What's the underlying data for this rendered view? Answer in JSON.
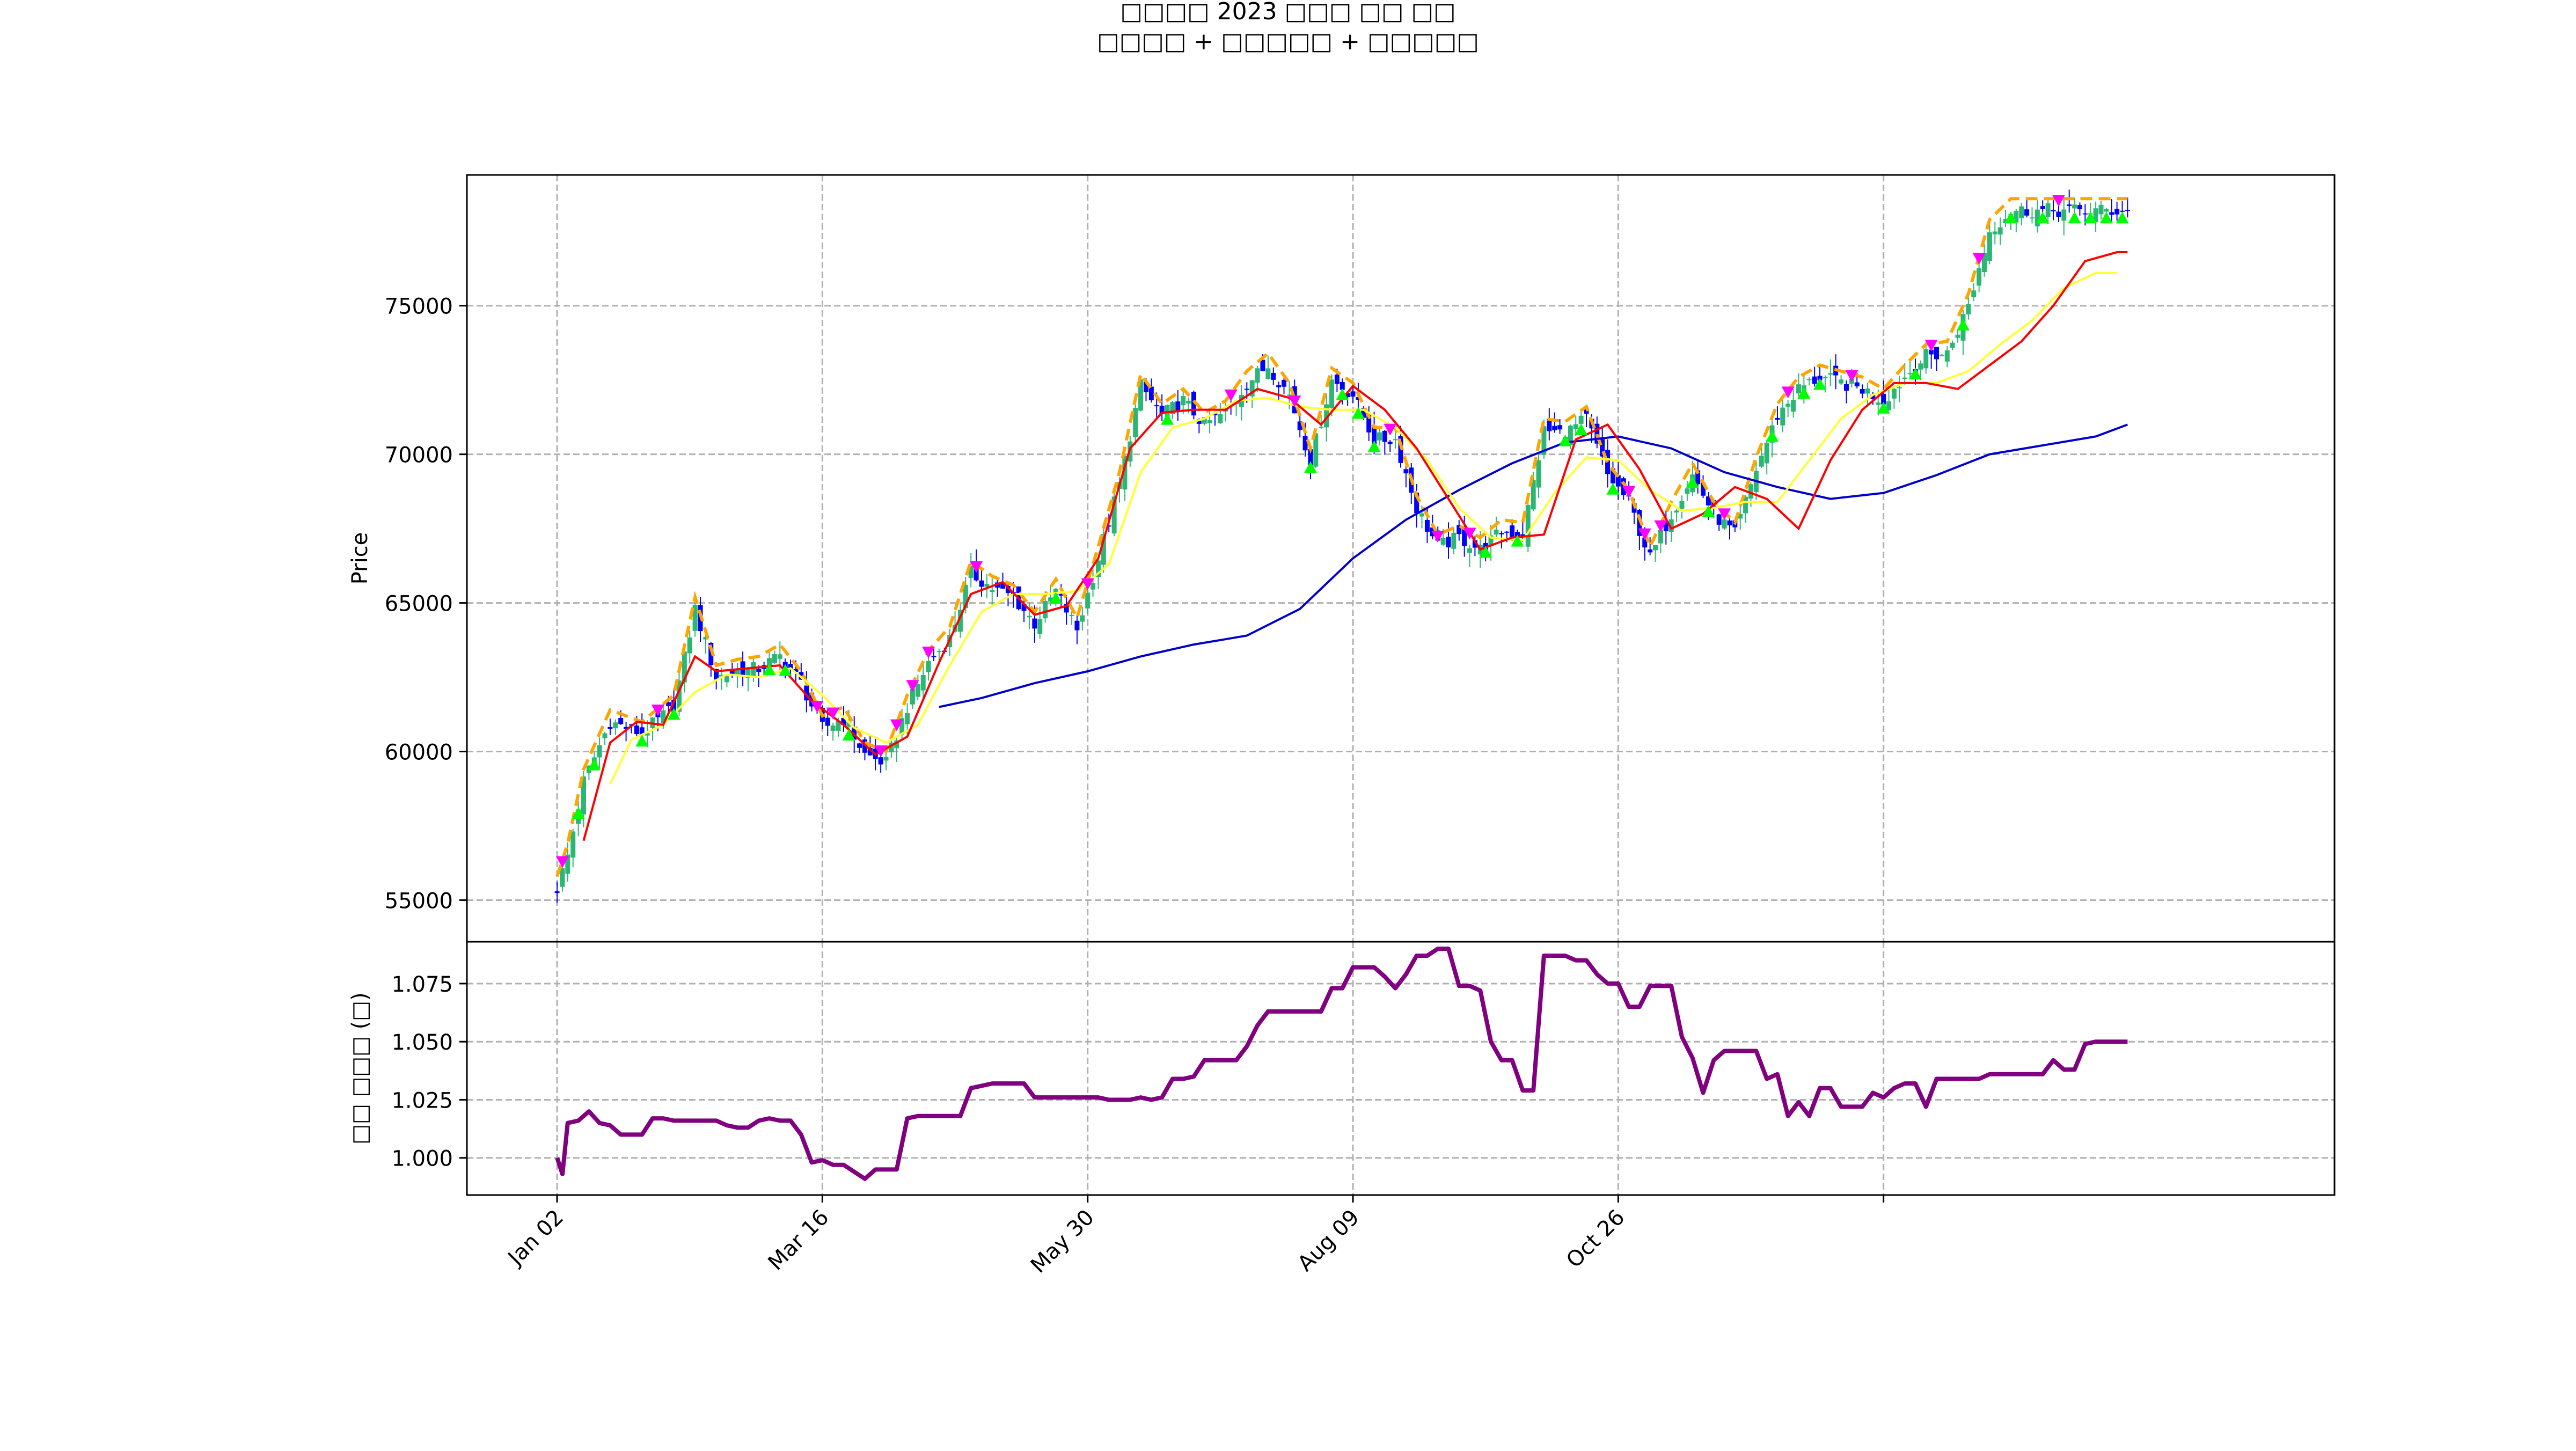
{
  "figure": {
    "title_line1": "□□□□ 2023 □□□ □□ □□",
    "title_line2": "□□□□ + □□□□□ + □□□□□"
  },
  "colors": {
    "up_candle": "#2bb673",
    "down_candle": "#0000ff",
    "ma_fast": "#ff0000",
    "ma_mid": "#ffff33",
    "ma_slow": "#0000cd",
    "band_dashed": "#ffa500",
    "buy_marker": "#00ff00",
    "sell_marker": "#ff00ff",
    "ratio_line": "#800080",
    "grid": "#b0b0b0"
  },
  "chart_data": [
    {
      "type": "line",
      "panel": "price",
      "subtype": "candlestick-with-overlays",
      "ylabel": "Price",
      "ylim": [
        53600,
        79400
      ],
      "yticks": [
        55000,
        60000,
        65000,
        70000,
        75000
      ],
      "x_tick_labels": [
        "Jan 02",
        "Mar 16",
        "May 30",
        "Aug 09",
        "Oct 26",
        ""
      ],
      "grid": true,
      "series": [
        {
          "role": "price-close",
          "x": [
            0,
            2,
            5,
            10,
            16,
            22,
            26,
            30,
            34,
            38,
            42,
            46,
            50,
            54,
            58,
            62,
            66,
            70,
            74,
            78,
            82,
            86,
            90,
            94,
            98,
            102,
            106,
            110,
            114,
            118,
            122,
            126,
            130,
            134,
            138,
            142,
            146,
            150,
            154,
            158,
            162,
            166,
            170,
            174,
            178,
            182,
            186,
            190,
            194,
            198,
            202,
            206,
            210,
            214,
            218,
            222,
            226,
            230,
            234,
            238,
            242,
            246,
            250,
            254,
            258,
            262,
            266,
            270,
            274,
            278,
            282,
            286,
            290,
            294,
            296
          ],
          "values": [
            55400,
            56500,
            59000,
            61000,
            60600,
            61500,
            64800,
            62500,
            62700,
            62800,
            63200,
            62300,
            60800,
            61100,
            59900,
            59600,
            61500,
            63000,
            63800,
            66000,
            65500,
            65200,
            64300,
            65400,
            64100,
            66500,
            69000,
            72300,
            71300,
            71800,
            71000,
            71400,
            72400,
            73000,
            72000,
            69800,
            72500,
            72000,
            70500,
            70500,
            68200,
            66900,
            67200,
            66800,
            67400,
            67300,
            70800,
            70700,
            71200,
            69300,
            68400,
            66500,
            68000,
            69300,
            68000,
            67300,
            69500,
            71300,
            72200,
            72600,
            72400,
            72200,
            71800,
            72600,
            73300,
            73400,
            75000,
            77500,
            78200,
            78200,
            78200,
            78200,
            78200,
            78200,
            78200
          ]
        },
        {
          "role": "ma-fast",
          "x": [
            5,
            10,
            15,
            20,
            26,
            30,
            36,
            42,
            48,
            54,
            60,
            66,
            72,
            78,
            84,
            90,
            96,
            102,
            108,
            114,
            120,
            126,
            132,
            138,
            144,
            150,
            156,
            162,
            168,
            174,
            180,
            186,
            192,
            198,
            204,
            210,
            216,
            222,
            228,
            234,
            240,
            246,
            252,
            258,
            264,
            270,
            276,
            282,
            288,
            294,
            296
          ],
          "values": [
            57000,
            60300,
            61000,
            60900,
            63200,
            62700,
            62800,
            62900,
            61700,
            60900,
            59900,
            60500,
            63000,
            65300,
            65700,
            64600,
            64900,
            66500,
            70200,
            71400,
            71500,
            71500,
            72200,
            71900,
            71000,
            72300,
            71500,
            70200,
            68500,
            66800,
            67200,
            67300,
            70500,
            71000,
            69500,
            67500,
            68000,
            68900,
            68500,
            67500,
            69800,
            71500,
            72400,
            72400,
            72200,
            73000,
            73800,
            75000,
            76500,
            76800,
            76800
          ]
        },
        {
          "role": "ma-mid",
          "x": [
            10,
            14,
            20,
            26,
            32,
            38,
            44,
            50,
            56,
            62,
            68,
            74,
            80,
            86,
            92,
            98,
            104,
            110,
            116,
            122,
            128,
            134,
            140,
            146,
            152,
            158,
            164,
            170,
            176,
            182,
            188,
            194,
            200,
            206,
            212,
            218,
            224,
            230,
            236,
            242,
            248,
            254,
            260,
            266,
            272,
            278,
            284,
            290,
            294
          ],
          "values": [
            58900,
            60400,
            60900,
            62000,
            62600,
            62500,
            62800,
            61900,
            60800,
            60300,
            60900,
            62900,
            64700,
            65300,
            65300,
            65400,
            66300,
            69400,
            70900,
            71200,
            71800,
            71900,
            71600,
            71500,
            71500,
            70900,
            69800,
            68200,
            67200,
            67100,
            68700,
            69900,
            69800,
            68800,
            68100,
            68200,
            68400,
            68400,
            69800,
            71200,
            72000,
            72400,
            72400,
            72800,
            73700,
            74500,
            75600,
            76100,
            76100
          ]
        },
        {
          "role": "ma-slow",
          "x": [
            72,
            80,
            90,
            100,
            110,
            120,
            130,
            140,
            150,
            160,
            170,
            180,
            190,
            200,
            210,
            220,
            230,
            240,
            250,
            260,
            270,
            280,
            290,
            296
          ],
          "values": [
            61500,
            61800,
            62300,
            62700,
            63200,
            63600,
            63900,
            64800,
            66500,
            67800,
            68800,
            69700,
            70400,
            70600,
            70200,
            69400,
            68900,
            68500,
            68700,
            69300,
            70000,
            70300,
            70600,
            71000
          ]
        }
      ]
    },
    {
      "type": "line",
      "panel": "ratio",
      "ylabel": "□□ □□□ (□)",
      "ylim": [
        0.984,
        1.093
      ],
      "yticks": [
        1.0,
        1.025,
        1.05,
        1.075
      ],
      "yticks_text": [
        "1.000",
        "1.025",
        "1.050",
        "1.075"
      ],
      "grid": true,
      "series": [
        {
          "role": "ratio",
          "x": [
            0,
            1,
            2,
            4,
            6,
            8,
            10,
            12,
            14,
            16,
            18,
            20,
            22,
            24,
            26,
            28,
            30,
            32,
            34,
            36,
            38,
            40,
            42,
            44,
            46,
            48,
            50,
            52,
            54,
            56,
            58,
            60,
            62,
            64,
            66,
            68,
            70,
            72,
            74,
            76,
            78,
            80,
            82,
            84,
            86,
            88,
            90,
            92,
            94,
            96,
            98,
            100,
            102,
            104,
            106,
            108,
            110,
            112,
            114,
            116,
            118,
            120,
            122,
            124,
            126,
            128,
            130,
            132,
            134,
            136,
            138,
            140,
            142,
            144,
            146,
            148,
            150,
            152,
            154,
            156,
            158,
            160,
            162,
            164,
            166,
            168,
            170,
            172,
            174,
            176,
            178,
            180,
            182,
            184,
            186,
            188,
            190,
            192,
            194,
            196,
            198,
            200,
            202,
            204,
            206,
            208,
            210,
            212,
            214,
            216,
            218,
            220,
            222,
            224,
            226,
            228,
            230,
            232,
            234,
            236,
            238,
            240,
            242,
            244,
            246,
            248,
            250,
            252,
            254,
            256,
            258,
            260,
            262,
            264,
            266,
            268,
            270,
            272,
            274,
            276,
            278,
            280,
            282,
            284,
            286,
            288,
            290,
            292,
            294,
            296
          ],
          "values": [
            1.0,
            0.993,
            1.015,
            1.016,
            1.02,
            1.015,
            1.014,
            1.01,
            1.01,
            1.01,
            1.017,
            1.017,
            1.016,
            1.016,
            1.016,
            1.016,
            1.016,
            1.014,
            1.013,
            1.013,
            1.016,
            1.017,
            1.016,
            1.016,
            1.01,
            0.998,
            0.999,
            0.997,
            0.997,
            0.994,
            0.991,
            0.995,
            0.995,
            0.995,
            1.017,
            1.018,
            1.018,
            1.018,
            1.018,
            1.018,
            1.03,
            1.031,
            1.032,
            1.032,
            1.032,
            1.032,
            1.026,
            1.026,
            1.026,
            1.026,
            1.026,
            1.026,
            1.026,
            1.025,
            1.025,
            1.025,
            1.026,
            1.025,
            1.026,
            1.034,
            1.034,
            1.035,
            1.042,
            1.042,
            1.042,
            1.042,
            1.048,
            1.057,
            1.063,
            1.063,
            1.063,
            1.063,
            1.063,
            1.063,
            1.073,
            1.073,
            1.082,
            1.082,
            1.082,
            1.078,
            1.073,
            1.079,
            1.087,
            1.087,
            1.09,
            1.09,
            1.074,
            1.074,
            1.072,
            1.05,
            1.042,
            1.042,
            1.029,
            1.029,
            1.087,
            1.087,
            1.087,
            1.085,
            1.085,
            1.079,
            1.075,
            1.075,
            1.065,
            1.065,
            1.074,
            1.074,
            1.074,
            1.052,
            1.043,
            1.028,
            1.042,
            1.046,
            1.046,
            1.046,
            1.046,
            1.034,
            1.036,
            1.018,
            1.024,
            1.018,
            1.03,
            1.03,
            1.022,
            1.022,
            1.022,
            1.028,
            1.026,
            1.03,
            1.032,
            1.032,
            1.022,
            1.034,
            1.034,
            1.034,
            1.034,
            1.034,
            1.036,
            1.036,
            1.036,
            1.036,
            1.036,
            1.036,
            1.042,
            1.038,
            1.038,
            1.049,
            1.05,
            1.05,
            1.05,
            1.05
          ]
        }
      ]
    }
  ]
}
